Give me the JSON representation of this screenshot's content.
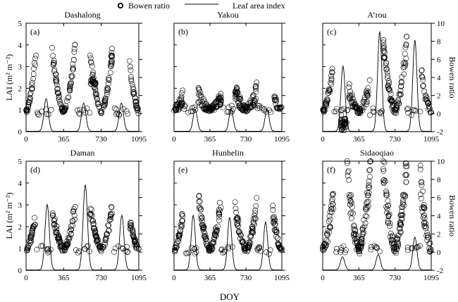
{
  "legend": {
    "items": [
      {
        "label": "Bowen ratio",
        "marker": "circle"
      },
      {
        "label": "Leaf area index",
        "marker": "line"
      }
    ]
  },
  "x_axis_label": "DOY",
  "colors": {
    "ink": "#000000",
    "background": "#ffffff"
  },
  "chart_data": [
    {
      "type": "scatter",
      "panel": "a",
      "title": "Dashalong",
      "ylabel_left": "LAI (m² m⁻²)",
      "ylim_left": [
        0,
        5
      ],
      "yticks_left": [
        0,
        1,
        2,
        3,
        4,
        5
      ],
      "ylabel_right": "",
      "ylim_right": [
        -2,
        10
      ],
      "yticks_right": [],
      "xlim": [
        0,
        1095
      ],
      "xticks": [
        0,
        365,
        730,
        1095
      ],
      "lai_peaks": [
        {
          "day": 195,
          "lai": 1.5
        },
        {
          "day": 560,
          "lai": 1.3
        },
        {
          "day": 925,
          "lai": 1.3
        }
      ],
      "bowen_seasons": [
        {
          "center": 0,
          "width": 100,
          "base": 0.2,
          "peak": 7.0,
          "spread": 0.6,
          "n": 70
        },
        {
          "center": 365,
          "width": 115,
          "base": 0.2,
          "peak": 7.5,
          "spread": 0.6,
          "n": 75
        },
        {
          "center": 730,
          "width": 110,
          "base": 0.2,
          "peak": 7.0,
          "spread": 0.6,
          "n": 70
        },
        {
          "center": 1095,
          "width": 100,
          "base": 0.2,
          "peak": 6.8,
          "spread": 0.6,
          "n": 70
        }
      ],
      "bowen_gaps": [
        {
          "start": 620,
          "end": 680,
          "value": 3.5,
          "spread": 0.3,
          "n": 20
        }
      ]
    },
    {
      "type": "scatter",
      "panel": "b",
      "title": "Yakou",
      "ylabel_left": "",
      "ylim_left": [
        0,
        5
      ],
      "yticks_left": [],
      "ylabel_right": "",
      "ylim_right": [
        -2,
        10
      ],
      "yticks_right": [],
      "xlim": [
        0,
        1095
      ],
      "xticks": [
        0,
        365,
        730,
        1095
      ],
      "lai_peaks": [
        {
          "day": 215,
          "lai": 1.0
        },
        {
          "day": 580,
          "lai": 1.0
        },
        {
          "day": 945,
          "lai": 1.0
        }
      ],
      "bowen_seasons": [
        {
          "center": 0,
          "width": 90,
          "base": 0.5,
          "peak": 1.8,
          "spread": 0.7,
          "n": 60
        },
        {
          "center": 365,
          "width": 120,
          "base": 0.5,
          "peak": 2.0,
          "spread": 0.7,
          "n": 90
        },
        {
          "center": 730,
          "width": 110,
          "base": 0.5,
          "peak": 2.4,
          "spread": 0.8,
          "n": 90
        },
        {
          "center": 1095,
          "width": 80,
          "base": 0.5,
          "peak": 1.5,
          "spread": 0.5,
          "n": 40
        }
      ],
      "bowen_gaps": []
    },
    {
      "type": "scatter",
      "panel": "c",
      "title": "A’rou",
      "ylabel_left": "",
      "ylim_left": [
        0,
        5
      ],
      "yticks_left": [],
      "ylabel_right": "Bowen ratio",
      "ylim_right": [
        -2,
        10
      ],
      "yticks_right": [
        -2,
        0,
        2,
        4,
        6,
        8,
        10
      ],
      "xlim": [
        0,
        1095
      ],
      "xticks": [
        0,
        365,
        730,
        1095
      ],
      "lai_peaks": [
        {
          "day": 205,
          "lai": 3.0
        },
        {
          "day": 575,
          "lai": 4.6
        },
        {
          "day": 930,
          "lai": 4.2
        }
      ],
      "bowen_seasons": [
        {
          "center": 0,
          "width": 100,
          "base": 0.2,
          "peak": 5.0,
          "spread": 0.7,
          "n": 70
        },
        {
          "center": 365,
          "width": 110,
          "base": 0.2,
          "peak": 3.0,
          "spread": 0.8,
          "n": 65
        },
        {
          "center": 730,
          "width": 120,
          "base": 0.2,
          "peak": 8.0,
          "spread": 0.9,
          "n": 90
        },
        {
          "center": 1095,
          "width": 100,
          "base": 0.2,
          "peak": 4.6,
          "spread": 0.7,
          "n": 55
        }
      ],
      "bowen_gaps": [
        {
          "start": 180,
          "end": 240,
          "value": -1.2,
          "spread": 0.7,
          "n": 35
        }
      ]
    },
    {
      "type": "scatter",
      "panel": "d",
      "title": "Daman",
      "ylabel_left": "LAI (m² m⁻²)",
      "ylim_left": [
        0,
        5
      ],
      "yticks_left": [
        0,
        1,
        2,
        3,
        4,
        5
      ],
      "ylabel_right": "",
      "ylim_right": [
        -2,
        10
      ],
      "yticks_right": [],
      "xlim": [
        0,
        1095
      ],
      "xticks": [
        0,
        365,
        730,
        1095
      ],
      "lai_peaks": [
        {
          "day": 205,
          "lai": 3.0
        },
        {
          "day": 575,
          "lai": 3.9
        },
        {
          "day": 930,
          "lai": 2.5
        }
      ],
      "bowen_seasons": [
        {
          "center": 0,
          "width": 95,
          "base": 0.3,
          "peak": 4.0,
          "spread": 0.6,
          "n": 60
        },
        {
          "center": 365,
          "width": 115,
          "base": 0.3,
          "peak": 5.0,
          "spread": 0.7,
          "n": 80
        },
        {
          "center": 730,
          "width": 110,
          "base": 0.3,
          "peak": 5.0,
          "spread": 0.7,
          "n": 75
        },
        {
          "center": 1095,
          "width": 95,
          "base": 0.3,
          "peak": 4.0,
          "spread": 0.6,
          "n": 60
        }
      ],
      "bowen_gaps": []
    },
    {
      "type": "scatter",
      "panel": "e",
      "title": "Hunhelin",
      "ylabel_left": "",
      "ylim_left": [
        0,
        5
      ],
      "yticks_left": [],
      "ylabel_right": "",
      "ylim_right": [
        -2,
        10
      ],
      "yticks_right": [],
      "xlim": [
        0,
        1095
      ],
      "xticks": [
        0,
        365,
        730,
        1095
      ],
      "lai_peaks": [
        {
          "day": 195,
          "lai": 2.5
        },
        {
          "day": 565,
          "lai": 2.4
        },
        {
          "day": 930,
          "lai": 2.2
        }
      ],
      "bowen_seasons": [
        {
          "center": 0,
          "width": 95,
          "base": 0.2,
          "peak": 4.5,
          "spread": 0.6,
          "n": 65
        },
        {
          "center": 365,
          "width": 115,
          "base": 0.2,
          "peak": 5.8,
          "spread": 0.7,
          "n": 85
        },
        {
          "center": 730,
          "width": 110,
          "base": 0.2,
          "peak": 5.2,
          "spread": 0.7,
          "n": 80
        },
        {
          "center": 1095,
          "width": 95,
          "base": 0.2,
          "peak": 4.5,
          "spread": 0.6,
          "n": 60
        }
      ],
      "bowen_gaps": []
    },
    {
      "type": "scatter",
      "panel": "f",
      "title": "Sidaoqiao",
      "ylabel_left": "",
      "ylim_left": [
        0,
        5
      ],
      "yticks_left": [],
      "ylabel_right": "Bowen ratio",
      "ylim_right": [
        -2,
        10
      ],
      "yticks_right": [
        -2,
        0,
        2,
        4,
        6,
        8,
        10
      ],
      "xlim": [
        0,
        1095
      ],
      "xticks": [
        0,
        365,
        730,
        1095
      ],
      "lai_peaks": [
        {
          "day": 200,
          "lai": 0.6
        },
        {
          "day": 560,
          "lai": 0.7
        },
        {
          "day": 930,
          "lai": 1.5
        }
      ],
      "bowen_seasons": [
        {
          "center": 0,
          "width": 110,
          "base": 0.3,
          "peak": 6.0,
          "spread": 1.2,
          "n": 75
        },
        {
          "center": 365,
          "width": 120,
          "base": 0.3,
          "peak": 9.5,
          "spread": 1.5,
          "n": 100
        },
        {
          "center": 730,
          "width": 120,
          "base": 0.3,
          "peak": 9.8,
          "spread": 1.5,
          "n": 100
        },
        {
          "center": 1095,
          "width": 110,
          "base": 0.3,
          "peak": 8.0,
          "spread": 1.3,
          "n": 80
        }
      ],
      "bowen_gaps": []
    }
  ]
}
